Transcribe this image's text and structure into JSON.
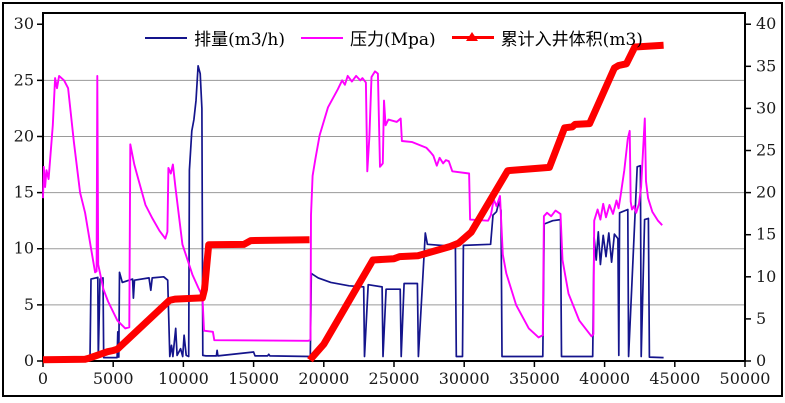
{
  "chart_data": {
    "type": "line",
    "title": "",
    "xlabel": "",
    "ylabel_left": "",
    "ylabel_right": "",
    "legend_position": "top-center-inside",
    "grid": "horizontal-only",
    "colors": {
      "flow_rate": "#14148c",
      "pressure": "#ff00ff",
      "cumulative_volume": "#fe0000",
      "gridline": "#9a9a9a",
      "frame": "#000000",
      "tick_label": "#1a1a1a"
    },
    "x_axis": {
      "min": 0,
      "max": 50000,
      "tick_step": 5000,
      "tick_labels": [
        "0",
        "5000",
        "10000",
        "15000",
        "20000",
        "25000",
        "30000",
        "35000",
        "40000",
        "45000",
        "50000"
      ]
    },
    "y_axis_left": {
      "min": 0,
      "max": 30,
      "tick_labels": [
        "0",
        "5",
        "10",
        "15",
        "20",
        "25",
        "30"
      ],
      "tick_values": [
        0,
        5,
        10,
        15,
        20,
        25,
        30
      ]
    },
    "y_axis_right": {
      "min": 0,
      "max": 40,
      "tick_labels": [
        "0",
        "5",
        "10",
        "15",
        "20",
        "25",
        "30",
        "35",
        "40"
      ],
      "tick_values": [
        0,
        5,
        10,
        15,
        20,
        25,
        30,
        35,
        40
      ]
    },
    "gridline_values_left_axis": [
      5,
      10,
      15,
      20,
      25
    ],
    "legend": [
      {
        "label": "排量(m3/h)",
        "color": "#14148c",
        "marker": "line"
      },
      {
        "label": "压力(Mpa)",
        "color": "#ff00ff",
        "marker": "line"
      },
      {
        "label": "累计入井体积(m3)",
        "color": "#fe0000",
        "marker": "triangle-line"
      }
    ],
    "series": [
      {
        "name": "排量(m3/h)",
        "id": "flow-rate",
        "axis": "left",
        "color": "#14148c",
        "width": 1.7,
        "points": [
          [
            0,
            0.25
          ],
          [
            3350,
            0.25
          ],
          [
            3420,
            7.3
          ],
          [
            3900,
            7.45
          ],
          [
            3940,
            0.3
          ],
          [
            4060,
            7.3
          ],
          [
            4270,
            7.4
          ],
          [
            4320,
            0.3
          ],
          [
            5280,
            0.3
          ],
          [
            5330,
            2.6
          ],
          [
            5400,
            0.35
          ],
          [
            5450,
            7.9
          ],
          [
            5650,
            7.0
          ],
          [
            6380,
            7.3
          ],
          [
            6440,
            5.6
          ],
          [
            6520,
            7.2
          ],
          [
            7550,
            7.4
          ],
          [
            7680,
            6.3
          ],
          [
            7780,
            7.4
          ],
          [
            8600,
            7.5
          ],
          [
            8880,
            7.2
          ],
          [
            9030,
            0.4
          ],
          [
            9150,
            1.4
          ],
          [
            9250,
            0.4
          ],
          [
            9450,
            2.9
          ],
          [
            9550,
            0.5
          ],
          [
            9800,
            1.1
          ],
          [
            9950,
            0.4
          ],
          [
            10050,
            2.3
          ],
          [
            10200,
            0.5
          ],
          [
            10380,
            0.4
          ],
          [
            10430,
            17.0
          ],
          [
            10600,
            20.5
          ],
          [
            10750,
            21.5
          ],
          [
            10900,
            23.2
          ],
          [
            11050,
            26.3
          ],
          [
            11200,
            25.6
          ],
          [
            11320,
            22.5
          ],
          [
            11380,
            0.5
          ],
          [
            11600,
            0.45
          ],
          [
            12350,
            0.45
          ],
          [
            12400,
            0.95
          ],
          [
            12460,
            0.45
          ],
          [
            15000,
            0.8
          ],
          [
            15100,
            0.45
          ],
          [
            16000,
            0.45
          ],
          [
            16080,
            0.6
          ],
          [
            16160,
            0.45
          ],
          [
            19040,
            0.4
          ],
          [
            19110,
            7.8
          ],
          [
            19600,
            7.4
          ],
          [
            20500,
            7.0
          ],
          [
            21800,
            6.7
          ],
          [
            22840,
            6.6
          ],
          [
            22900,
            0.4
          ],
          [
            23160,
            6.8
          ],
          [
            24150,
            6.6
          ],
          [
            24220,
            0.4
          ],
          [
            24440,
            6.4
          ],
          [
            25440,
            6.4
          ],
          [
            25510,
            0.4
          ],
          [
            25720,
            6.9
          ],
          [
            26670,
            6.9
          ],
          [
            26740,
            0.4
          ],
          [
            27230,
            11.4
          ],
          [
            27380,
            10.4
          ],
          [
            29370,
            10.2
          ],
          [
            29440,
            0.4
          ],
          [
            29880,
            0.4
          ],
          [
            29940,
            10.3
          ],
          [
            31880,
            10.4
          ],
          [
            32050,
            13.0
          ],
          [
            32300,
            13.3
          ],
          [
            32480,
            14.2
          ],
          [
            32620,
            13.4
          ],
          [
            32690,
            0.4
          ],
          [
            35600,
            0.4
          ],
          [
            35700,
            12.2
          ],
          [
            36300,
            12.5
          ],
          [
            36860,
            12.6
          ],
          [
            36930,
            0.4
          ],
          [
            39150,
            0.4
          ],
          [
            39250,
            11.0
          ],
          [
            39400,
            9.0
          ],
          [
            39550,
            11.5
          ],
          [
            39700,
            8.6
          ],
          [
            39900,
            11.2
          ],
          [
            40100,
            9.3
          ],
          [
            40300,
            11.4
          ],
          [
            40500,
            8.8
          ],
          [
            40700,
            11.3
          ],
          [
            40950,
            10.9
          ],
          [
            41010,
            0.5
          ],
          [
            41070,
            13.2
          ],
          [
            41650,
            13.5
          ],
          [
            41710,
            0.4
          ],
          [
            42320,
            17.3
          ],
          [
            42550,
            17.4
          ],
          [
            42610,
            0.4
          ],
          [
            42850,
            12.6
          ],
          [
            43120,
            12.7
          ],
          [
            43190,
            0.35
          ],
          [
            44200,
            0.3
          ]
        ]
      },
      {
        "name": "压力(Mpa)",
        "id": "pressure",
        "axis": "left",
        "color": "#ff00ff",
        "width": 1.9,
        "points": [
          [
            0,
            14.5
          ],
          [
            60,
            17.3
          ],
          [
            150,
            15.5
          ],
          [
            250,
            17.0
          ],
          [
            400,
            16.2
          ],
          [
            700,
            21.0
          ],
          [
            860,
            25.2
          ],
          [
            1000,
            24.3
          ],
          [
            1150,
            25.4
          ],
          [
            1500,
            25.0
          ],
          [
            1790,
            24.3
          ],
          [
            2200,
            19.5
          ],
          [
            2640,
            15.0
          ],
          [
            3000,
            13.2
          ],
          [
            3400,
            10.2
          ],
          [
            3710,
            7.9
          ],
          [
            3820,
            8.0
          ],
          [
            3865,
            25.4
          ],
          [
            3930,
            8.6
          ],
          [
            4300,
            6.4
          ],
          [
            4640,
            5.3
          ],
          [
            5300,
            3.6
          ],
          [
            5860,
            2.9
          ],
          [
            6150,
            3.0
          ],
          [
            6220,
            19.3
          ],
          [
            6500,
            17.5
          ],
          [
            6790,
            16.2
          ],
          [
            7300,
            13.9
          ],
          [
            7790,
            12.7
          ],
          [
            8300,
            11.6
          ],
          [
            8710,
            10.9
          ],
          [
            8860,
            11.5
          ],
          [
            8930,
            17.2
          ],
          [
            9100,
            16.7
          ],
          [
            9250,
            17.5
          ],
          [
            9430,
            15.5
          ],
          [
            9930,
            10.4
          ],
          [
            10640,
            7.7
          ],
          [
            11070,
            6.5
          ],
          [
            11350,
            5.8
          ],
          [
            11470,
            2.7
          ],
          [
            12100,
            2.6
          ],
          [
            12200,
            1.85
          ],
          [
            18900,
            1.8
          ],
          [
            19050,
            1.9
          ],
          [
            19090,
            13.0
          ],
          [
            19200,
            16.5
          ],
          [
            19400,
            18.0
          ],
          [
            19700,
            20.1
          ],
          [
            20300,
            22.6
          ],
          [
            21000,
            24.2
          ],
          [
            21300,
            25.0
          ],
          [
            21500,
            24.6
          ],
          [
            21700,
            25.4
          ],
          [
            22000,
            24.9
          ],
          [
            22300,
            25.4
          ],
          [
            22600,
            25.0
          ],
          [
            22750,
            25.2
          ],
          [
            23000,
            24.8
          ],
          [
            23100,
            16.9
          ],
          [
            23250,
            20.0
          ],
          [
            23400,
            25.3
          ],
          [
            23650,
            25.8
          ],
          [
            23850,
            25.6
          ],
          [
            24000,
            17.3
          ],
          [
            24200,
            17.6
          ],
          [
            24290,
            23.2
          ],
          [
            24400,
            21.0
          ],
          [
            24600,
            21.5
          ],
          [
            25200,
            21.3
          ],
          [
            25480,
            21.6
          ],
          [
            25560,
            19.6
          ],
          [
            26300,
            19.5
          ],
          [
            27300,
            19.0
          ],
          [
            27600,
            18.6
          ],
          [
            27800,
            18.3
          ],
          [
            28050,
            17.4
          ],
          [
            28250,
            18.1
          ],
          [
            28500,
            17.6
          ],
          [
            28700,
            17.9
          ],
          [
            28900,
            17.8
          ],
          [
            29150,
            16.9
          ],
          [
            30350,
            16.7
          ],
          [
            30420,
            12.6
          ],
          [
            31700,
            12.5
          ],
          [
            31900,
            13.0
          ],
          [
            32100,
            14.4
          ],
          [
            32300,
            13.8
          ],
          [
            32550,
            14.7
          ],
          [
            32750,
            9.5
          ],
          [
            33000,
            7.8
          ],
          [
            33700,
            5.0
          ],
          [
            34600,
            2.9
          ],
          [
            35300,
            2.1
          ],
          [
            35600,
            2.3
          ],
          [
            35680,
            12.9
          ],
          [
            35900,
            13.2
          ],
          [
            36200,
            12.9
          ],
          [
            36500,
            13.4
          ],
          [
            36860,
            13.1
          ],
          [
            37000,
            9.0
          ],
          [
            37430,
            6.0
          ],
          [
            38200,
            3.6
          ],
          [
            39070,
            2.2
          ],
          [
            39200,
            2.4
          ],
          [
            39260,
            12.5
          ],
          [
            39500,
            13.5
          ],
          [
            39700,
            12.6
          ],
          [
            39900,
            14.0
          ],
          [
            40100,
            12.8
          ],
          [
            40350,
            13.9
          ],
          [
            40600,
            13.1
          ],
          [
            40850,
            14.3
          ],
          [
            41000,
            13.6
          ],
          [
            41150,
            14.8
          ],
          [
            41400,
            17.0
          ],
          [
            41650,
            19.8
          ],
          [
            41790,
            20.5
          ],
          [
            41860,
            14.2
          ],
          [
            41950,
            13.5
          ],
          [
            42100,
            13.8
          ],
          [
            42250,
            13.2
          ],
          [
            42450,
            14.0
          ],
          [
            42600,
            15.5
          ],
          [
            42750,
            19.0
          ],
          [
            42860,
            21.6
          ],
          [
            42950,
            16.0
          ],
          [
            43100,
            14.5
          ],
          [
            43400,
            13.3
          ],
          [
            43800,
            12.5
          ],
          [
            44100,
            12.1
          ]
        ]
      },
      {
        "name": "累计入井体积(m3)",
        "id": "cumulative-volume",
        "axis": "right",
        "color": "#fe0000",
        "width": 7,
        "points": [
          [
            0,
            0.15
          ],
          [
            3000,
            0.2
          ],
          [
            3300,
            0.35
          ],
          [
            4600,
            1.1
          ],
          [
            5000,
            1.25
          ],
          [
            5300,
            1.4
          ],
          [
            9000,
            7.2
          ],
          [
            9400,
            7.35
          ],
          [
            11350,
            7.5
          ],
          [
            11500,
            8.5
          ],
          [
            11800,
            13.8
          ],
          [
            14300,
            13.85
          ],
          [
            14800,
            14.3
          ],
          [
            18980,
            14.4
          ],
          null,
          [
            19020,
            0.1
          ],
          [
            19100,
            0.3
          ],
          [
            20000,
            2.0
          ],
          [
            23500,
            12.0
          ],
          [
            25000,
            12.15
          ],
          [
            25400,
            12.4
          ],
          [
            26700,
            12.5
          ],
          [
            29000,
            13.6
          ],
          [
            29600,
            14.0
          ],
          [
            30500,
            15.3
          ],
          [
            33100,
            22.6
          ],
          [
            36070,
            23.0
          ],
          [
            37150,
            27.7
          ],
          [
            37700,
            27.8
          ],
          [
            37900,
            28.1
          ],
          [
            38930,
            28.2
          ],
          [
            40700,
            34.8
          ],
          [
            41000,
            35.1
          ],
          [
            41550,
            35.3
          ],
          [
            42150,
            37.3
          ],
          [
            44200,
            37.5
          ]
        ]
      }
    ]
  }
}
